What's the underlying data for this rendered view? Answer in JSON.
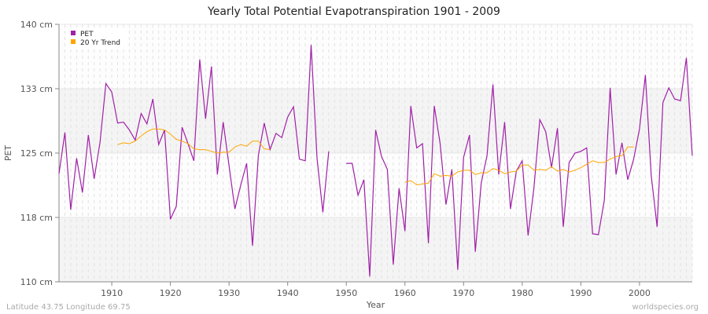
{
  "chart_data": {
    "type": "line",
    "title": "Yearly Total Potential Evapotranspiration 1901 - 2009",
    "xlabel": "Year",
    "ylabel": "PET",
    "xlim": [
      1901,
      2009
    ],
    "ylim": [
      110,
      140
    ],
    "y_ticks": [
      {
        "value": 110,
        "label": "110 cm"
      },
      {
        "value": 117.5,
        "label": "118 cm"
      },
      {
        "value": 125,
        "label": "125 cm"
      },
      {
        "value": 132.5,
        "label": "133 cm"
      },
      {
        "value": 140,
        "label": "140 cm"
      }
    ],
    "x_ticks": [
      1910,
      1920,
      1930,
      1940,
      1950,
      1960,
      1970,
      1980,
      1990,
      2000
    ],
    "grid": true,
    "legend": "top-left",
    "series": [
      {
        "name": "PET",
        "color": "#a020a8",
        "points": [
          [
            1901,
            122.6
          ],
          [
            1902,
            127.4
          ],
          [
            1903,
            118.4
          ],
          [
            1904,
            124.4
          ],
          [
            1905,
            120.4
          ],
          [
            1906,
            127.1
          ],
          [
            1907,
            122.0
          ],
          [
            1908,
            126.3
          ],
          [
            1909,
            133.1
          ],
          [
            1910,
            132.1
          ],
          [
            1911,
            128.5
          ],
          [
            1912,
            128.6
          ],
          [
            1913,
            127.7
          ],
          [
            1914,
            126.5
          ],
          [
            1915,
            129.6
          ],
          [
            1916,
            128.4
          ],
          [
            1917,
            131.3
          ],
          [
            1918,
            126.0
          ],
          [
            1919,
            127.7
          ],
          [
            1920,
            117.3
          ],
          [
            1921,
            118.8
          ],
          [
            1922,
            128.0
          ],
          [
            1923,
            126.1
          ],
          [
            1924,
            124.1
          ],
          [
            1925,
            135.9
          ],
          [
            1926,
            129.0
          ],
          [
            1927,
            135.1
          ],
          [
            1928,
            122.5
          ],
          [
            1929,
            128.6
          ],
          [
            1930,
            123.5
          ],
          [
            1931,
            118.5
          ],
          [
            1932,
            121.3
          ],
          [
            1933,
            123.8
          ],
          [
            1934,
            114.2
          ],
          [
            1935,
            124.7
          ],
          [
            1936,
            128.5
          ],
          [
            1937,
            125.4
          ],
          [
            1938,
            127.3
          ],
          [
            1939,
            126.8
          ],
          [
            1940,
            129.2
          ],
          [
            1941,
            130.4
          ],
          [
            1942,
            124.3
          ],
          [
            1943,
            124.1
          ],
          [
            1944,
            137.6
          ],
          [
            1945,
            124.4
          ],
          [
            1946,
            118.1
          ],
          [
            1947,
            125.2
          ],
          [
            1948,
            null
          ],
          [
            1949,
            null
          ],
          [
            1950,
            123.8
          ],
          [
            1951,
            123.8
          ],
          [
            1952,
            120.1
          ],
          [
            1953,
            121.9
          ],
          [
            1954,
            110.6
          ],
          [
            1955,
            127.7
          ],
          [
            1956,
            124.6
          ],
          [
            1957,
            123.1
          ],
          [
            1958,
            112.0
          ],
          [
            1959,
            120.9
          ],
          [
            1960,
            115.9
          ],
          [
            1961,
            130.5
          ],
          [
            1962,
            125.6
          ],
          [
            1963,
            126.1
          ],
          [
            1964,
            114.5
          ],
          [
            1965,
            130.5
          ],
          [
            1966,
            126.1
          ],
          [
            1967,
            119.0
          ],
          [
            1968,
            123.1
          ],
          [
            1969,
            111.4
          ],
          [
            1970,
            124.5
          ],
          [
            1971,
            127.1
          ],
          [
            1972,
            113.5
          ],
          [
            1973,
            121.5
          ],
          [
            1974,
            124.7
          ],
          [
            1975,
            133.0
          ],
          [
            1976,
            122.5
          ],
          [
            1977,
            128.6
          ],
          [
            1978,
            118.5
          ],
          [
            1979,
            122.9
          ],
          [
            1980,
            124.1
          ],
          [
            1981,
            115.4
          ],
          [
            1982,
            121.0
          ],
          [
            1983,
            128.9
          ],
          [
            1984,
            127.5
          ],
          [
            1985,
            123.3
          ],
          [
            1986,
            127.9
          ],
          [
            1987,
            116.4
          ],
          [
            1988,
            123.9
          ],
          [
            1989,
            125.0
          ],
          [
            1990,
            125.2
          ],
          [
            1991,
            125.6
          ],
          [
            1992,
            115.6
          ],
          [
            1993,
            115.5
          ],
          [
            1994,
            119.5
          ],
          [
            1995,
            132.6
          ],
          [
            1996,
            122.5
          ],
          [
            1997,
            126.2
          ],
          [
            1998,
            121.9
          ],
          [
            1999,
            124.3
          ],
          [
            2000,
            127.8
          ],
          [
            2001,
            134.1
          ],
          [
            2002,
            122.4
          ],
          [
            2003,
            116.4
          ],
          [
            2004,
            130.9
          ],
          [
            2005,
            132.6
          ],
          [
            2006,
            131.3
          ],
          [
            2007,
            131.1
          ],
          [
            2008,
            136.1
          ],
          [
            2009,
            124.7
          ]
        ]
      },
      {
        "name": "20 Yr Trend",
        "color": "#ffa500",
        "points": [
          [
            1911,
            126.0
          ],
          [
            1912,
            126.2
          ],
          [
            1913,
            126.1
          ],
          [
            1914,
            126.4
          ],
          [
            1915,
            127.0
          ],
          [
            1916,
            127.5
          ],
          [
            1917,
            127.8
          ],
          [
            1918,
            127.8
          ],
          [
            1919,
            127.7
          ],
          [
            1920,
            127.2
          ],
          [
            1921,
            126.6
          ],
          [
            1922,
            126.4
          ],
          [
            1923,
            126.1
          ],
          [
            1924,
            125.5
          ],
          [
            1925,
            125.4
          ],
          [
            1926,
            125.4
          ],
          [
            1927,
            125.2
          ],
          [
            1928,
            125.0
          ],
          [
            1929,
            125.1
          ],
          [
            1930,
            125.1
          ],
          [
            1931,
            125.7
          ],
          [
            1932,
            126.0
          ],
          [
            1933,
            125.8
          ],
          [
            1934,
            126.4
          ],
          [
            1935,
            126.4
          ],
          [
            1936,
            125.5
          ],
          [
            1937,
            125.4
          ],
          [
            1938,
            null
          ],
          [
            1960,
            121.6
          ],
          [
            1961,
            121.8
          ],
          [
            1962,
            121.3
          ],
          [
            1963,
            121.4
          ],
          [
            1964,
            121.5
          ],
          [
            1965,
            122.6
          ],
          [
            1966,
            122.3
          ],
          [
            1967,
            122.4
          ],
          [
            1968,
            122.3
          ],
          [
            1969,
            122.8
          ],
          [
            1970,
            123.0
          ],
          [
            1971,
            123.0
          ],
          [
            1972,
            122.5
          ],
          [
            1973,
            122.7
          ],
          [
            1974,
            122.7
          ],
          [
            1975,
            123.2
          ],
          [
            1976,
            123.0
          ],
          [
            1977,
            122.6
          ],
          [
            1978,
            122.8
          ],
          [
            1979,
            122.9
          ],
          [
            1980,
            123.6
          ],
          [
            1981,
            123.6
          ],
          [
            1982,
            123.0
          ],
          [
            1983,
            123.1
          ],
          [
            1984,
            123.0
          ],
          [
            1985,
            123.4
          ],
          [
            1986,
            122.9
          ],
          [
            1987,
            123.1
          ],
          [
            1988,
            122.8
          ],
          [
            1989,
            123.0
          ],
          [
            1990,
            123.3
          ],
          [
            1991,
            123.7
          ],
          [
            1992,
            124.1
          ],
          [
            1993,
            123.9
          ],
          [
            1994,
            123.9
          ],
          [
            1995,
            124.3
          ],
          [
            1996,
            124.6
          ],
          [
            1997,
            124.7
          ],
          [
            1998,
            125.7
          ],
          [
            1999,
            125.7
          ]
        ]
      }
    ]
  },
  "footer": {
    "location": "Latitude 43.75 Longitude 69.75",
    "source": "worldspecies.org"
  }
}
